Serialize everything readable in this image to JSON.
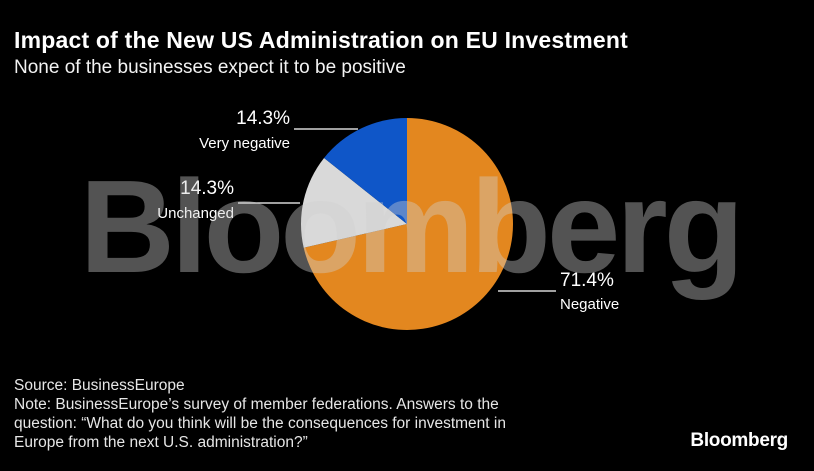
{
  "chart_data": {
    "type": "pie",
    "title": "Impact of the New US Administration on EU Investment",
    "subtitle": "None of the businesses expect it to be positive",
    "slices": [
      {
        "label": "Negative",
        "value": 71.4,
        "value_label": "71.4%",
        "color": "#E3871F"
      },
      {
        "label": "Unchanged",
        "value": 14.3,
        "value_label": "14.3%",
        "color": "#D9D9D9"
      },
      {
        "label": "Very negative",
        "value": 14.3,
        "value_label": "14.3%",
        "color": "#0F56C8"
      }
    ],
    "watermark": "Bloomberg"
  },
  "footer": {
    "source": "Source: BusinessEurope",
    "note_lines": [
      "Note: BusinessEurope’s survey of member federations. Answers to the",
      "question: “What do you think will be the consequences for investment in",
      "Europe from the next U.S. administration?”"
    ]
  },
  "brand": {
    "name": "Bloomberg"
  }
}
